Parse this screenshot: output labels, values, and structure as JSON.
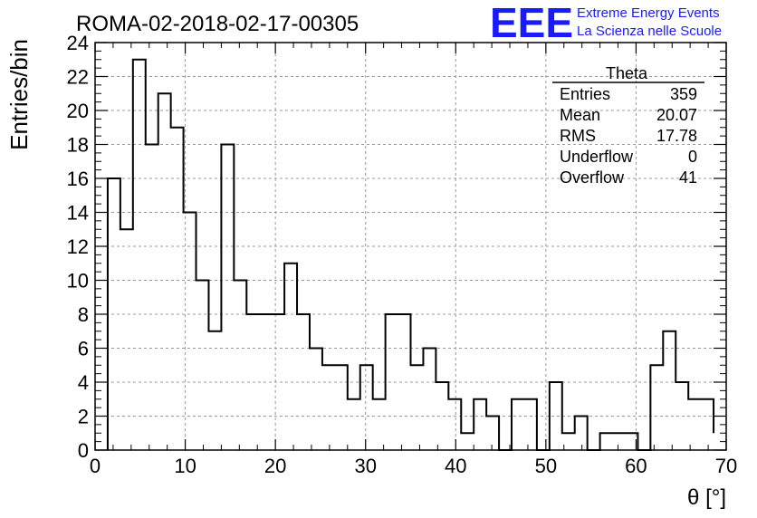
{
  "logo": {
    "letters": "EEE",
    "line1": "Extreme Energy Events",
    "line2": "La Scienza nelle Scuole",
    "color": "#1a1aff"
  },
  "chart_data": {
    "type": "histogram",
    "title": "ROMA-02-2018-02-17-00305",
    "xlabel": "θ [°]",
    "ylabel": "Entries/bin",
    "xlim": [
      0,
      70
    ],
    "ylim": [
      0,
      24
    ],
    "grid": true,
    "x_ticks": [
      0,
      10,
      20,
      30,
      40,
      50,
      60,
      70
    ],
    "y_ticks": [
      0,
      2,
      4,
      6,
      8,
      10,
      12,
      14,
      16,
      18,
      20,
      22,
      24
    ],
    "bin_edges": [
      1.4,
      2.8,
      4.2,
      5.6,
      7.0,
      8.4,
      9.8,
      11.2,
      12.6,
      14.0,
      15.4,
      16.8,
      18.2,
      19.6,
      21.0,
      22.4,
      23.8,
      25.2,
      26.6,
      28.0,
      29.4,
      30.8,
      32.2,
      33.6,
      35.0,
      36.4,
      37.8,
      39.2,
      40.6,
      42.0,
      43.4,
      44.8,
      46.2,
      47.6,
      49.0,
      50.4,
      51.8,
      53.2,
      54.6,
      56.0,
      57.4,
      58.8,
      60.2,
      61.6,
      63.0,
      64.4,
      65.8,
      67.2,
      68.6
    ],
    "values": [
      16,
      13,
      23,
      18,
      21,
      19,
      14,
      10,
      7,
      18,
      10,
      8,
      8,
      8,
      11,
      8,
      6,
      5,
      5,
      3,
      5,
      3,
      8,
      8,
      5,
      6,
      4,
      3,
      1,
      3,
      2,
      0,
      3,
      3,
      0,
      4,
      1,
      2,
      0,
      1,
      1,
      1,
      0,
      5,
      7,
      4,
      3,
      3,
      1
    ],
    "line_color": "#000000",
    "stats": {
      "title": "Theta",
      "rows": [
        {
          "label": "Entries",
          "value": "359"
        },
        {
          "label": "Mean",
          "value": "20.07"
        },
        {
          "label": "RMS",
          "value": "17.78"
        },
        {
          "label": "Underflow",
          "value": "0"
        },
        {
          "label": "Overflow",
          "value": "41"
        }
      ]
    }
  }
}
